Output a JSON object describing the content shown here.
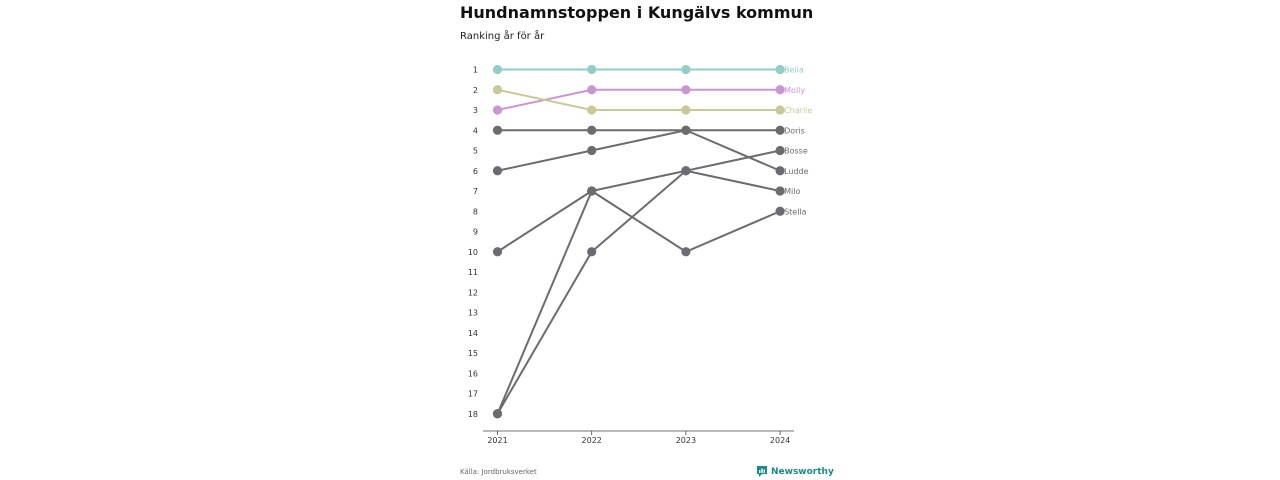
{
  "title": "Hundnamnstoppen i Kungälvs kommun",
  "subtitle": "Ranking år för år",
  "source": "Källa: Jordbruksverket",
  "brand": "Newsworthy",
  "brand_icon": "newsworthy-logo-icon",
  "colors": {
    "gray": "#6b6b70",
    "accent": "#1a8a8a"
  },
  "chart_data": {
    "type": "line",
    "chart_subtype": "bump",
    "title": "Hundnamnstoppen i Kungälvs kommun",
    "subtitle": "Ranking år för år",
    "x": [
      2021,
      2022,
      2023,
      2024
    ],
    "y_ticks": [
      1,
      2,
      3,
      4,
      5,
      6,
      7,
      8,
      9,
      10,
      11,
      12,
      13,
      14,
      15,
      16,
      17,
      18
    ],
    "ylim": [
      1,
      18
    ],
    "y_inverted": true,
    "grid": false,
    "legend": "end-labels",
    "series": [
      {
        "name": "Bella",
        "values": [
          1,
          1,
          1,
          1
        ],
        "color": "#93cdc9"
      },
      {
        "name": "Molly",
        "values": [
          3,
          2,
          2,
          2
        ],
        "color": "#c995d2"
      },
      {
        "name": "Charlie",
        "values": [
          2,
          3,
          3,
          3
        ],
        "color": "#c9c998"
      },
      {
        "name": "Doris",
        "values": [
          4,
          4,
          4,
          4
        ],
        "color": "#6b6b70"
      },
      {
        "name": "Bosse",
        "values": [
          18,
          10,
          6,
          5
        ],
        "color": "#6b6b70"
      },
      {
        "name": "Ludde",
        "values": [
          6,
          5,
          4,
          6
        ],
        "color": "#6b6b70"
      },
      {
        "name": "Milo",
        "values": [
          18,
          7,
          6,
          7
        ],
        "color": "#6b6b70"
      },
      {
        "name": "Stella",
        "values": [
          10,
          7,
          10,
          8
        ],
        "color": "#6b6b70"
      }
    ]
  }
}
